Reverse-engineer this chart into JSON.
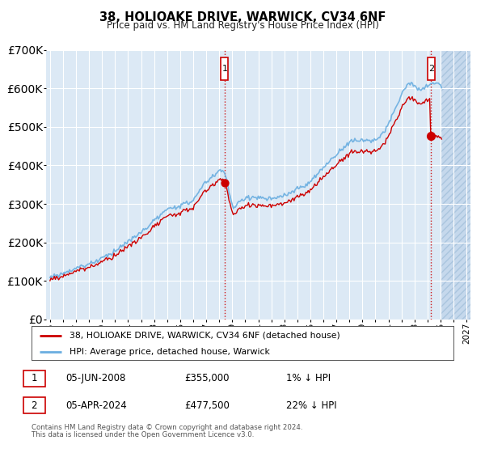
{
  "title": "38, HOLIOAKE DRIVE, WARWICK, CV34 6NF",
  "subtitle": "Price paid vs. HM Land Registry's House Price Index (HPI)",
  "legend_line1": "38, HOLIOAKE DRIVE, WARWICK, CV34 6NF (detached house)",
  "legend_line2": "HPI: Average price, detached house, Warwick",
  "annotation1_date": "05-JUN-2008",
  "annotation1_price": "£355,000",
  "annotation1_hpi": "1% ↓ HPI",
  "annotation1_year": 2008.42,
  "annotation1_value": 355000,
  "annotation2_date": "05-APR-2024",
  "annotation2_price": "£477,500",
  "annotation2_hpi": "22% ↓ HPI",
  "annotation2_year": 2024.27,
  "annotation2_value": 477500,
  "footer1": "Contains HM Land Registry data © Crown copyright and database right 2024.",
  "footer2": "This data is licensed under the Open Government Licence v3.0.",
  "ylim": [
    0,
    700000
  ],
  "xlim_start": 1994.7,
  "xlim_end": 2027.3,
  "bg_color": "#dce9f5",
  "hatch_color": "#c8d8ec",
  "grid_color": "#ffffff",
  "hpi_color": "#6aaee0",
  "price_color": "#cc0000",
  "annotation_box_color": "#cc0000",
  "future_start": 2025.0
}
